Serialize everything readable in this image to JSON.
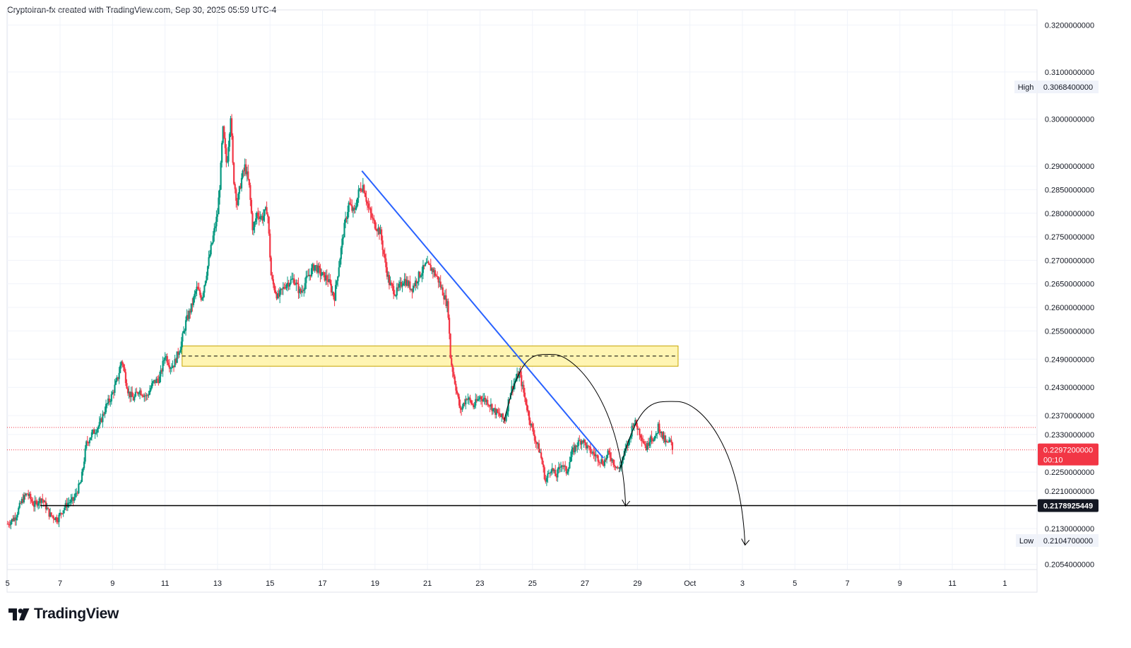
{
  "header": {
    "attribution": "Cryptoiran-fx created with TradingView.com, Sep 30, 2025 05:59 UTC-4"
  },
  "branding": {
    "logo_text": "TradingView"
  },
  "colors": {
    "up": "#089981",
    "down": "#f23645",
    "trendline": "#2962ff",
    "zone_fill": "#fff3a6",
    "zone_border": "#c7a600",
    "price_label_bg": "#f23645",
    "support_line": "#000000",
    "grid": "#f0f3fa"
  },
  "chart_data": {
    "type": "candlestick",
    "x_axis": {
      "ticks": [
        "5",
        "7",
        "9",
        "11",
        "13",
        "15",
        "17",
        "19",
        "21",
        "23",
        "25",
        "27",
        "29",
        "Oct",
        "3",
        "5",
        "7",
        "9",
        "11",
        "1"
      ],
      "start_date": "2025-09-05",
      "range_days": [
        4.98,
        44.2
      ]
    },
    "y_axis": {
      "ticks": [
        "0.3200000000",
        "0.3100000000",
        "0.3000000000",
        "0.2900000000",
        "0.2850000000",
        "0.2800000000",
        "0.2750000000",
        "0.2700000000",
        "0.2650000000",
        "0.2600000000",
        "0.2550000000",
        "0.2490000000",
        "0.2430000000",
        "0.2370000000",
        "0.2330000000",
        "0.2250000000",
        "0.2210000000",
        "0.2130000000",
        "0.2054000000"
      ],
      "tick_values": [
        0.32,
        0.31,
        0.3,
        0.29,
        0.285,
        0.28,
        0.275,
        0.27,
        0.265,
        0.26,
        0.255,
        0.249,
        0.243,
        0.237,
        0.233,
        0.225,
        0.221,
        0.213,
        0.2054
      ],
      "range": [
        0.2043,
        0.3232
      ]
    },
    "labels": {
      "high": {
        "label": "High",
        "value": "0.3068400000",
        "price": 0.30684
      },
      "low": {
        "label": "Low",
        "value": "0.2104700000",
        "price": 0.21047
      },
      "current": {
        "value": "0.2297200000",
        "countdown": "00:10",
        "price": 0.22972
      },
      "support": {
        "value": "0.2178925449",
        "price": 0.2178925449
      }
    },
    "price_series": [
      [
        5.0,
        0.214
      ],
      [
        5.3,
        0.2155
      ],
      [
        5.55,
        0.219
      ],
      [
        5.75,
        0.2205
      ],
      [
        6.0,
        0.218
      ],
      [
        6.3,
        0.2195
      ],
      [
        6.6,
        0.216
      ],
      [
        6.9,
        0.215
      ],
      [
        7.1,
        0.217
      ],
      [
        7.3,
        0.2185
      ],
      [
        7.5,
        0.219
      ],
      [
        7.8,
        0.223
      ],
      [
        8.0,
        0.231
      ],
      [
        8.2,
        0.233
      ],
      [
        8.5,
        0.235
      ],
      [
        8.75,
        0.239
      ],
      [
        8.95,
        0.241
      ],
      [
        9.2,
        0.245
      ],
      [
        9.35,
        0.249
      ],
      [
        9.6,
        0.242
      ],
      [
        9.8,
        0.2405
      ],
      [
        10.0,
        0.2425
      ],
      [
        10.3,
        0.241
      ],
      [
        10.55,
        0.244
      ],
      [
        10.8,
        0.245
      ],
      [
        11.0,
        0.25
      ],
      [
        11.2,
        0.2475
      ],
      [
        11.35,
        0.248
      ],
      [
        11.6,
        0.252
      ],
      [
        11.8,
        0.257
      ],
      [
        12.0,
        0.26
      ],
      [
        12.2,
        0.264
      ],
      [
        12.4,
        0.262
      ],
      [
        12.6,
        0.268
      ],
      [
        12.8,
        0.274
      ],
      [
        13.0,
        0.28
      ],
      [
        13.1,
        0.287
      ],
      [
        13.2,
        0.298
      ],
      [
        13.35,
        0.29
      ],
      [
        13.5,
        0.301
      ],
      [
        13.6,
        0.288
      ],
      [
        13.75,
        0.282
      ],
      [
        13.9,
        0.287
      ],
      [
        14.05,
        0.29
      ],
      [
        14.2,
        0.286
      ],
      [
        14.35,
        0.276
      ],
      [
        14.5,
        0.28
      ],
      [
        14.7,
        0.279
      ],
      [
        14.9,
        0.281
      ],
      [
        15.05,
        0.266
      ],
      [
        15.3,
        0.262
      ],
      [
        15.6,
        0.265
      ],
      [
        15.9,
        0.266
      ],
      [
        16.15,
        0.263
      ],
      [
        16.4,
        0.266
      ],
      [
        16.7,
        0.269
      ],
      [
        16.95,
        0.267
      ],
      [
        17.2,
        0.266
      ],
      [
        17.45,
        0.262
      ],
      [
        17.6,
        0.268
      ],
      [
        17.8,
        0.276
      ],
      [
        18.0,
        0.282
      ],
      [
        18.2,
        0.28
      ],
      [
        18.4,
        0.285
      ],
      [
        18.55,
        0.286
      ],
      [
        18.75,
        0.281
      ],
      [
        18.95,
        0.278
      ],
      [
        19.2,
        0.276
      ],
      [
        19.4,
        0.269
      ],
      [
        19.55,
        0.265
      ],
      [
        19.8,
        0.263
      ],
      [
        20.1,
        0.266
      ],
      [
        20.4,
        0.264
      ],
      [
        20.7,
        0.267
      ],
      [
        20.95,
        0.269
      ],
      [
        21.2,
        0.268
      ],
      [
        21.4,
        0.266
      ],
      [
        21.6,
        0.263
      ],
      [
        21.78,
        0.26
      ],
      [
        21.88,
        0.249
      ],
      [
        22.05,
        0.244
      ],
      [
        22.25,
        0.238
      ],
      [
        22.5,
        0.241
      ],
      [
        22.75,
        0.239
      ],
      [
        23.0,
        0.241
      ],
      [
        23.3,
        0.24
      ],
      [
        23.55,
        0.238
      ],
      [
        23.75,
        0.237
      ],
      [
        23.95,
        0.236
      ],
      [
        24.15,
        0.242
      ],
      [
        24.3,
        0.244
      ],
      [
        24.5,
        0.246
      ],
      [
        24.7,
        0.241
      ],
      [
        24.9,
        0.236
      ],
      [
        25.1,
        0.232
      ],
      [
        25.3,
        0.229
      ],
      [
        25.5,
        0.223
      ],
      [
        25.7,
        0.226
      ],
      [
        25.9,
        0.224
      ],
      [
        26.1,
        0.227
      ],
      [
        26.3,
        0.225
      ],
      [
        26.5,
        0.229
      ],
      [
        26.7,
        0.231
      ],
      [
        26.9,
        0.232
      ],
      [
        27.1,
        0.23
      ],
      [
        27.3,
        0.229
      ],
      [
        27.5,
        0.228
      ],
      [
        27.7,
        0.227
      ],
      [
        27.9,
        0.229
      ],
      [
        28.1,
        0.227
      ],
      [
        28.3,
        0.2255
      ],
      [
        28.5,
        0.229
      ],
      [
        28.7,
        0.232
      ],
      [
        28.85,
        0.236
      ],
      [
        29.0,
        0.2345
      ],
      [
        29.2,
        0.232
      ],
      [
        29.35,
        0.23
      ],
      [
        29.5,
        0.233
      ],
      [
        29.65,
        0.2315
      ],
      [
        29.8,
        0.235
      ],
      [
        29.95,
        0.2325
      ],
      [
        30.1,
        0.231
      ],
      [
        30.25,
        0.2315
      ],
      [
        30.35,
        0.2297
      ]
    ],
    "annotations": {
      "trendline": {
        "from": [
          18.5,
          0.289
        ],
        "to": [
          27.7,
          0.228
        ]
      },
      "supply_zone": {
        "x_from": 11.65,
        "x_to": 30.55,
        "y_from": 0.2475,
        "y_to": 0.2518,
        "mid": 0.24965
      },
      "support_line": {
        "x_from": 6.25,
        "price": 0.2178925449
      },
      "red_dotted_levels": [
        0.2345,
        0.22972
      ],
      "arcs": [
        {
          "from": [
            23.9,
            0.2355
          ],
          "peak": [
            25.8,
            0.25
          ],
          "to": [
            28.55,
            0.2178
          ]
        },
        {
          "from": [
            28.3,
            0.225
          ],
          "peak": [
            30.5,
            0.24
          ],
          "to": [
            33.1,
            0.2095
          ]
        }
      ]
    }
  }
}
